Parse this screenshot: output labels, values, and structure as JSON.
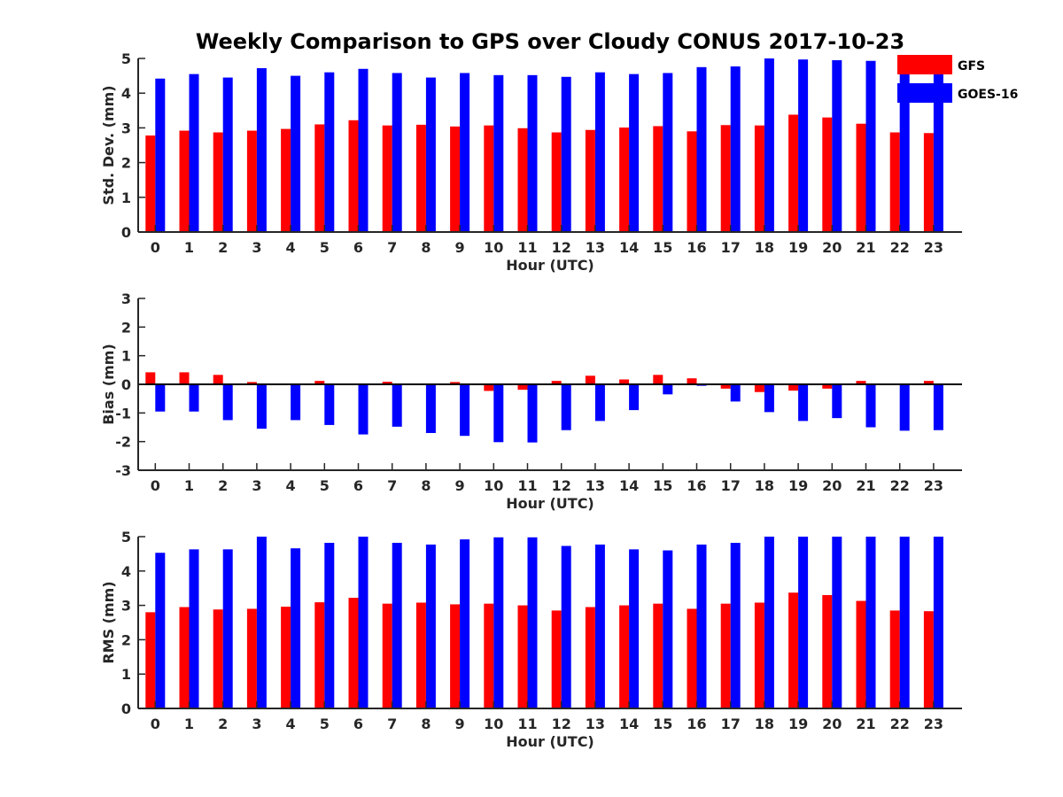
{
  "title": "Weekly Comparison to GPS over Cloudy CONUS 2017-10-23",
  "colors": {
    "GFS": "#ff0000",
    "GOES-16": "#0000ff"
  },
  "legend": [
    {
      "label": "GFS",
      "color": "#ff0000"
    },
    {
      "label": "GOES-16",
      "color": "#0000ff"
    }
  ],
  "legend_position": "top-right",
  "chart_data": [
    {
      "type": "bar",
      "id": "std",
      "xlabel": "Hour (UTC)",
      "ylabel": "Std. Dev. (mm)",
      "ylim": [
        0,
        5
      ],
      "yticks": [
        0,
        1,
        2,
        3,
        4,
        5
      ],
      "categories": [
        "0",
        "1",
        "2",
        "3",
        "4",
        "5",
        "6",
        "7",
        "8",
        "9",
        "10",
        "11",
        "12",
        "13",
        "14",
        "15",
        "16",
        "17",
        "18",
        "19",
        "20",
        "21",
        "22",
        "23"
      ],
      "series": [
        {
          "name": "GFS",
          "values": [
            2.78,
            2.92,
            2.87,
            2.92,
            2.97,
            3.1,
            3.22,
            3.07,
            3.09,
            3.04,
            3.07,
            2.99,
            2.87,
            2.94,
            3.01,
            3.05,
            2.9,
            3.08,
            3.07,
            3.38,
            3.3,
            3.12,
            2.87,
            2.85
          ]
        },
        {
          "name": "GOES-16",
          "values": [
            4.42,
            4.55,
            4.45,
            4.72,
            4.5,
            4.6,
            4.7,
            4.58,
            4.45,
            4.58,
            4.52,
            4.52,
            4.47,
            4.6,
            4.55,
            4.58,
            4.75,
            4.77,
            5.0,
            4.97,
            4.95,
            4.93,
            4.97,
            4.9
          ]
        }
      ]
    },
    {
      "type": "bar",
      "id": "bias",
      "xlabel": "Hour (UTC)",
      "ylabel": "Bias (mm)",
      "ylim": [
        -3,
        3
      ],
      "yticks": [
        -3,
        -2,
        -1,
        0,
        1,
        2,
        3
      ],
      "categories": [
        "0",
        "1",
        "2",
        "3",
        "4",
        "5",
        "6",
        "7",
        "8",
        "9",
        "10",
        "11",
        "12",
        "13",
        "14",
        "15",
        "16",
        "17",
        "18",
        "19",
        "20",
        "21",
        "22",
        "23"
      ],
      "series": [
        {
          "name": "GFS",
          "values": [
            0.42,
            0.42,
            0.33,
            0.08,
            0.02,
            0.12,
            -0.03,
            0.09,
            0.0,
            0.08,
            -0.23,
            -0.19,
            0.12,
            0.3,
            0.17,
            0.33,
            0.21,
            -0.15,
            -0.27,
            -0.22,
            -0.15,
            0.12,
            -0.02,
            0.12
          ]
        },
        {
          "name": "GOES-16",
          "values": [
            -0.95,
            -0.95,
            -1.25,
            -1.55,
            -1.25,
            -1.42,
            -1.75,
            -1.48,
            -1.7,
            -1.8,
            -2.02,
            -2.03,
            -1.6,
            -1.28,
            -0.9,
            -0.35,
            -0.05,
            -0.6,
            -0.97,
            -1.28,
            -1.18,
            -1.5,
            -1.62,
            -1.6
          ]
        }
      ]
    },
    {
      "type": "bar",
      "id": "rms",
      "xlabel": "Hour (UTC)",
      "ylabel": "RMS (mm)",
      "ylim": [
        0,
        5
      ],
      "yticks": [
        0,
        1,
        2,
        3,
        4,
        5
      ],
      "categories": [
        "0",
        "1",
        "2",
        "3",
        "4",
        "5",
        "6",
        "7",
        "8",
        "9",
        "10",
        "11",
        "12",
        "13",
        "14",
        "15",
        "16",
        "17",
        "18",
        "19",
        "20",
        "21",
        "22",
        "23"
      ],
      "series": [
        {
          "name": "GFS",
          "values": [
            2.8,
            2.95,
            2.88,
            2.9,
            2.96,
            3.09,
            3.22,
            3.05,
            3.08,
            3.03,
            3.05,
            3.0,
            2.85,
            2.95,
            3.0,
            3.05,
            2.9,
            3.05,
            3.08,
            3.37,
            3.3,
            3.13,
            2.85,
            2.83
          ]
        },
        {
          "name": "GOES-16",
          "values": [
            4.53,
            4.63,
            4.63,
            5.0,
            4.66,
            4.82,
            5.0,
            4.82,
            4.77,
            4.92,
            4.98,
            4.98,
            4.73,
            4.77,
            4.63,
            4.6,
            4.77,
            4.82,
            5.0,
            5.0,
            5.0,
            5.0,
            5.0,
            5.0
          ]
        }
      ]
    }
  ]
}
